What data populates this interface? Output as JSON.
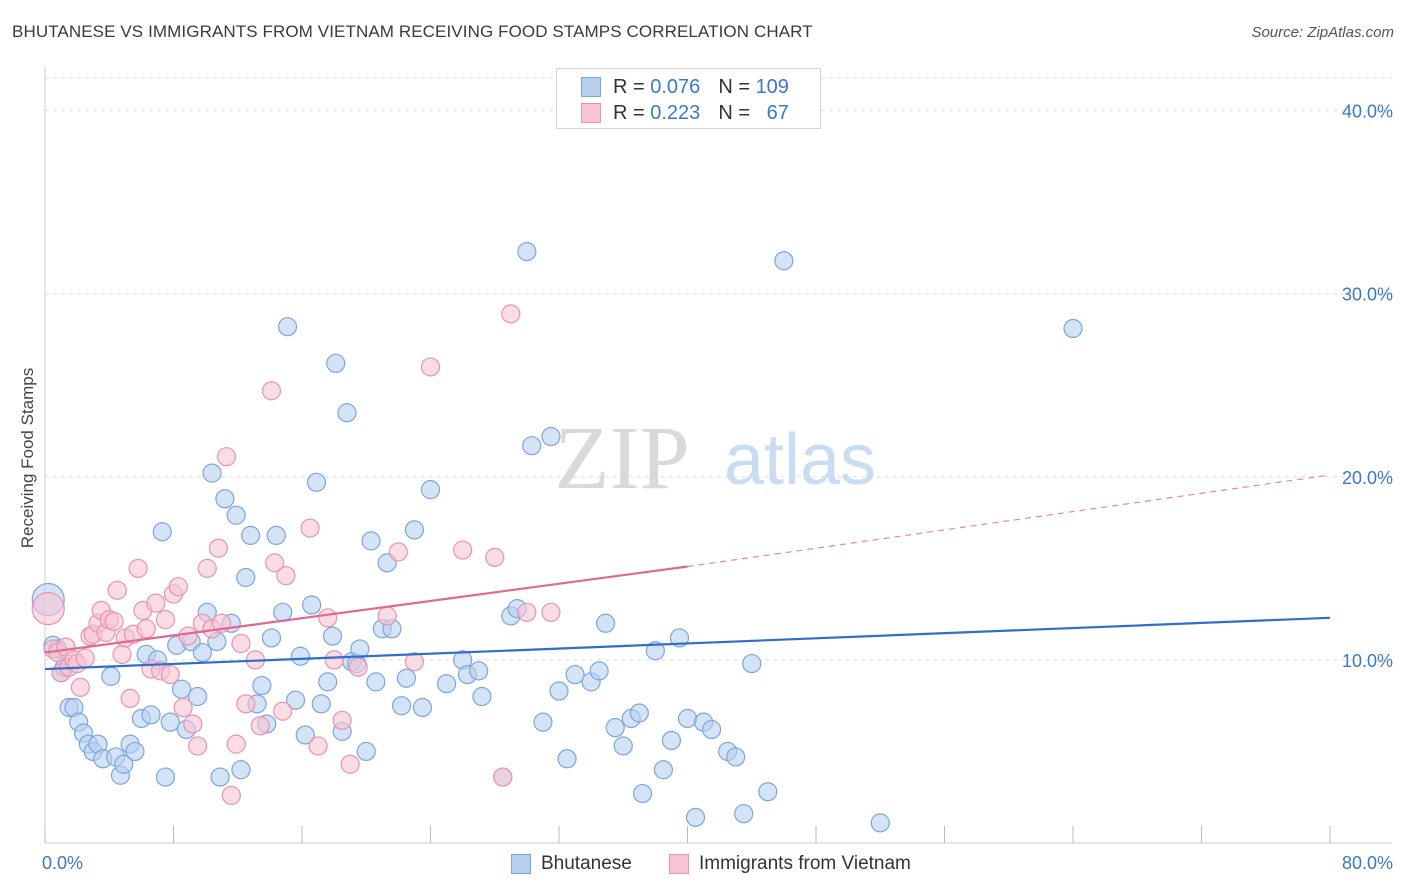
{
  "title": "BHUTANESE VS IMMIGRANTS FROM VIETNAM RECEIVING FOOD STAMPS CORRELATION CHART",
  "source": "Source: ZipAtlas.com",
  "watermark": {
    "zip": "ZIP",
    "atlas": "atlas"
  },
  "legend_top": {
    "rows": [
      {
        "r_label": "R =",
        "r_value": "0.076",
        "n_label": "N =",
        "n_value": "109"
      },
      {
        "r_label": "R =",
        "r_value": "0.223",
        "n_label": "N =",
        "n_value": "67"
      }
    ]
  },
  "colors": {
    "blue_fill": "#b8d0ef",
    "blue_stroke": "#7aa6df",
    "blue_line": "#2f6fcc",
    "pink_fill": "#f6c4d3",
    "pink_stroke": "#ea92b0",
    "pink_line": "#e2678f",
    "tick_label": "#3a78c9",
    "grid": "#dddddd"
  },
  "chart_data": {
    "type": "scatter",
    "title": "BHUTANESE VS IMMIGRANTS FROM VIETNAM RECEIVING FOOD STAMPS CORRELATION CHART",
    "xlabel": "",
    "ylabel": "Receiving Food Stamps",
    "xlim": [
      0,
      80
    ],
    "ylim": [
      0,
      42
    ],
    "x_tick_labels": [
      "0.0%",
      "80.0%"
    ],
    "y_ticks": [
      10,
      20,
      30,
      40
    ],
    "y_tick_labels": [
      "10.0%",
      "20.0%",
      "30.0%",
      "40.0%"
    ],
    "grid": "horizontal dashed",
    "legend_placement": "bottom-center",
    "series": [
      {
        "name": "Bhutanese",
        "color": "#b8d0ef",
        "trend": {
          "x": [
            0,
            80
          ],
          "y": [
            9.5,
            12.3
          ],
          "style": "solid"
        },
        "points": [
          [
            0.2,
            13.3
          ],
          [
            0.5,
            10.8
          ],
          [
            0.8,
            10.6
          ],
          [
            1.0,
            9.3
          ],
          [
            1.2,
            9.6
          ],
          [
            1.5,
            7.4
          ],
          [
            1.8,
            7.4
          ],
          [
            2.1,
            6.6
          ],
          [
            2.4,
            6.0
          ],
          [
            2.7,
            5.4
          ],
          [
            3.0,
            5.0
          ],
          [
            3.3,
            5.4
          ],
          [
            3.6,
            4.6
          ],
          [
            4.1,
            9.1
          ],
          [
            4.4,
            4.7
          ],
          [
            4.7,
            3.7
          ],
          [
            4.9,
            4.3
          ],
          [
            5.3,
            5.4
          ],
          [
            5.6,
            5.0
          ],
          [
            6.0,
            6.8
          ],
          [
            6.3,
            10.3
          ],
          [
            6.6,
            7.0
          ],
          [
            7.0,
            10.0
          ],
          [
            7.3,
            17.0
          ],
          [
            7.5,
            3.6
          ],
          [
            7.8,
            6.6
          ],
          [
            8.2,
            10.8
          ],
          [
            8.5,
            8.4
          ],
          [
            8.8,
            6.2
          ],
          [
            9.1,
            11.0
          ],
          [
            9.5,
            8.0
          ],
          [
            9.8,
            10.4
          ],
          [
            10.1,
            12.6
          ],
          [
            10.4,
            20.2
          ],
          [
            10.7,
            11.0
          ],
          [
            10.9,
            3.6
          ],
          [
            11.2,
            18.8
          ],
          [
            11.6,
            12.0
          ],
          [
            11.9,
            17.9
          ],
          [
            12.2,
            4.0
          ],
          [
            12.5,
            14.5
          ],
          [
            12.8,
            16.8
          ],
          [
            13.2,
            7.6
          ],
          [
            13.5,
            8.6
          ],
          [
            13.8,
            6.5
          ],
          [
            14.1,
            11.2
          ],
          [
            14.4,
            16.8
          ],
          [
            14.8,
            12.6
          ],
          [
            15.1,
            28.2
          ],
          [
            15.6,
            7.8
          ],
          [
            15.9,
            10.2
          ],
          [
            16.2,
            5.9
          ],
          [
            16.6,
            13.0
          ],
          [
            16.9,
            19.7
          ],
          [
            17.2,
            7.6
          ],
          [
            17.6,
            8.8
          ],
          [
            17.9,
            11.3
          ],
          [
            18.1,
            26.2
          ],
          [
            18.5,
            6.1
          ],
          [
            18.8,
            23.5
          ],
          [
            19.1,
            9.9
          ],
          [
            19.4,
            9.8
          ],
          [
            19.6,
            10.6
          ],
          [
            20.0,
            5.0
          ],
          [
            20.3,
            16.5
          ],
          [
            20.6,
            8.8
          ],
          [
            21.0,
            11.7
          ],
          [
            21.3,
            15.3
          ],
          [
            21.6,
            11.7
          ],
          [
            22.2,
            7.5
          ],
          [
            22.5,
            9.0
          ],
          [
            23.0,
            17.1
          ],
          [
            23.5,
            7.4
          ],
          [
            24.0,
            19.3
          ],
          [
            25.0,
            8.7
          ],
          [
            26.0,
            10.0
          ],
          [
            26.3,
            9.2
          ],
          [
            27.0,
            9.4
          ],
          [
            27.2,
            8.0
          ],
          [
            28.5,
            3.6
          ],
          [
            29.0,
            12.4
          ],
          [
            29.4,
            12.8
          ],
          [
            30.0,
            32.3
          ],
          [
            30.3,
            21.7
          ],
          [
            31.0,
            6.6
          ],
          [
            31.5,
            22.2
          ],
          [
            32.0,
            8.3
          ],
          [
            32.5,
            4.6
          ],
          [
            33.0,
            9.2
          ],
          [
            34.0,
            8.8
          ],
          [
            34.5,
            9.4
          ],
          [
            34.9,
            12.0
          ],
          [
            35.5,
            6.3
          ],
          [
            36.0,
            5.3
          ],
          [
            36.5,
            6.8
          ],
          [
            37.0,
            7.1
          ],
          [
            37.2,
            2.7
          ],
          [
            38.0,
            10.5
          ],
          [
            38.5,
            4.0
          ],
          [
            39.0,
            5.6
          ],
          [
            39.5,
            11.2
          ],
          [
            40.0,
            6.8
          ],
          [
            40.5,
            1.4
          ],
          [
            41.0,
            6.6
          ],
          [
            41.5,
            6.2
          ],
          [
            42.5,
            5.0
          ],
          [
            43.0,
            4.7
          ],
          [
            43.5,
            1.6
          ],
          [
            44.0,
            9.8
          ],
          [
            45.0,
            2.8
          ],
          [
            46.0,
            31.8
          ],
          [
            52.0,
            1.1
          ],
          [
            64.0,
            28.1
          ]
        ]
      },
      {
        "name": "Immigrants from Vietnam",
        "color": "#f6c4d3",
        "trend": {
          "x": [
            0,
            40
          ],
          "y": [
            10.4,
            15.1
          ],
          "style": "solid",
          "extension": {
            "x": [
              40,
              80
            ],
            "y": [
              15.1,
              20.1
            ],
            "style": "dashed"
          }
        },
        "points": [
          [
            0.2,
            12.8
          ],
          [
            0.5,
            10.6
          ],
          [
            0.8,
            10.4
          ],
          [
            1.0,
            9.3
          ],
          [
            1.3,
            10.7
          ],
          [
            1.5,
            9.6
          ],
          [
            1.8,
            10.0
          ],
          [
            2.0,
            9.8
          ],
          [
            2.2,
            8.5
          ],
          [
            2.5,
            10.1
          ],
          [
            2.8,
            11.3
          ],
          [
            3.0,
            11.4
          ],
          [
            3.3,
            12.0
          ],
          [
            3.5,
            12.7
          ],
          [
            3.8,
            11.5
          ],
          [
            4.0,
            12.2
          ],
          [
            4.3,
            12.1
          ],
          [
            4.5,
            13.8
          ],
          [
            4.8,
            10.3
          ],
          [
            5.0,
            11.2
          ],
          [
            5.3,
            7.9
          ],
          [
            5.5,
            11.4
          ],
          [
            5.8,
            15.0
          ],
          [
            6.1,
            12.7
          ],
          [
            6.3,
            11.7
          ],
          [
            6.6,
            9.5
          ],
          [
            6.9,
            13.1
          ],
          [
            7.2,
            9.4
          ],
          [
            7.5,
            12.2
          ],
          [
            7.8,
            9.2
          ],
          [
            8.0,
            13.6
          ],
          [
            8.3,
            14.0
          ],
          [
            8.6,
            7.4
          ],
          [
            8.9,
            11.3
          ],
          [
            9.2,
            6.5
          ],
          [
            9.5,
            5.3
          ],
          [
            9.8,
            12.0
          ],
          [
            10.1,
            15.0
          ],
          [
            10.4,
            11.7
          ],
          [
            10.8,
            16.1
          ],
          [
            11.0,
            12.0
          ],
          [
            11.3,
            21.1
          ],
          [
            11.6,
            2.6
          ],
          [
            11.9,
            5.4
          ],
          [
            12.2,
            10.9
          ],
          [
            12.5,
            7.6
          ],
          [
            13.1,
            10.0
          ],
          [
            13.4,
            6.4
          ],
          [
            14.1,
            24.7
          ],
          [
            14.3,
            15.3
          ],
          [
            14.8,
            7.2
          ],
          [
            15.0,
            14.6
          ],
          [
            16.5,
            17.2
          ],
          [
            17.0,
            5.3
          ],
          [
            17.6,
            12.3
          ],
          [
            18.0,
            10.0
          ],
          [
            18.5,
            6.7
          ],
          [
            19.0,
            4.3
          ],
          [
            19.5,
            9.6
          ],
          [
            21.3,
            12.4
          ],
          [
            22.0,
            15.9
          ],
          [
            23.0,
            9.9
          ],
          [
            24.0,
            26.0
          ],
          [
            26.0,
            16.0
          ],
          [
            28.0,
            15.6
          ],
          [
            28.5,
            3.6
          ],
          [
            29.0,
            28.9
          ],
          [
            30.0,
            12.6
          ],
          [
            31.5,
            12.6
          ]
        ]
      }
    ]
  }
}
